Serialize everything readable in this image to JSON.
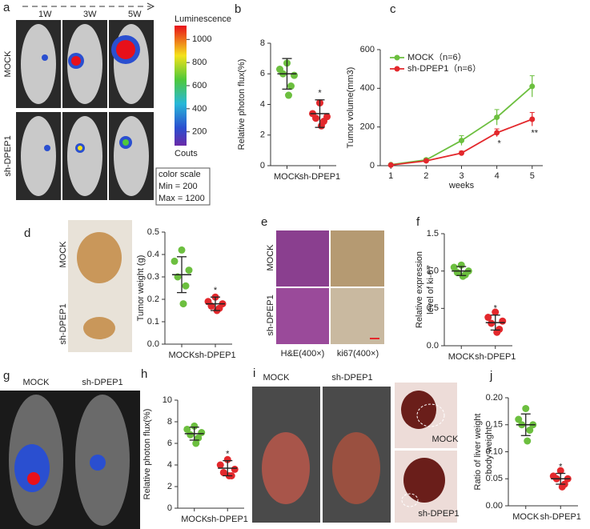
{
  "chart_data": [
    {
      "panel": "b",
      "type": "dot",
      "ylabel": [
        "Relative photon flux(%)"
      ],
      "ylim": [
        0,
        8
      ],
      "yticks": [
        0,
        2,
        4,
        6,
        8
      ],
      "groups": [
        {
          "label": "MOCK",
          "color": "#6cbf3f",
          "values": [
            6.7,
            6.3,
            5.9,
            6.0,
            5.2,
            4.6
          ],
          "mean": 6.0,
          "sd": 1.0
        },
        {
          "label": "sh-DPEP1",
          "color": "#e3282c",
          "values": [
            4.1,
            3.4,
            3.2,
            3.1,
            2.9,
            2.6
          ],
          "mean": 3.4,
          "sd": 0.9,
          "significance": "*"
        }
      ]
    },
    {
      "panel": "c",
      "type": "line",
      "xlabel": "weeks",
      "ylabel": "Tumor volume(mm3)",
      "x": [
        1,
        2,
        3,
        4,
        5
      ],
      "xlim": [
        0.7,
        5.3
      ],
      "xticks": [
        1,
        2,
        3,
        4,
        5
      ],
      "ylim": [
        0,
        600
      ],
      "yticks": [
        0,
        200,
        400,
        600
      ],
      "legend": "top-left",
      "series": [
        {
          "name": "MOCK（n=6）",
          "color": "#6cbf3f",
          "values": [
            5,
            30,
            130,
            250,
            410
          ],
          "errors": [
            3,
            8,
            25,
            40,
            55
          ],
          "significance": [
            null,
            null,
            null,
            null,
            null
          ]
        },
        {
          "name": "sh-DPEP1（n=6）",
          "color": "#e3282c",
          "values": [
            3,
            25,
            65,
            170,
            240
          ],
          "errors": [
            2,
            5,
            10,
            20,
            35
          ],
          "significance": [
            null,
            null,
            null,
            "*",
            "**"
          ]
        }
      ]
    },
    {
      "panel": "d",
      "type": "dot",
      "ylabel": [
        "Tumor weight (g)"
      ],
      "ylim": [
        0,
        0.5
      ],
      "yticks": [
        {
          "value": 0,
          "label": "0.0"
        },
        0.1,
        0.2,
        0.3,
        0.4,
        0.5
      ],
      "groups": [
        {
          "label": "MOCK",
          "color": "#6cbf3f",
          "values": [
            0.42,
            0.37,
            0.33,
            0.3,
            0.26,
            0.18
          ],
          "mean": 0.31,
          "sd": 0.08
        },
        {
          "label": "sh-DPEP1",
          "color": "#e3282c",
          "values": [
            0.21,
            0.19,
            0.18,
            0.17,
            0.16,
            0.15
          ],
          "mean": 0.18,
          "sd": 0.03,
          "significance": "*"
        }
      ]
    },
    {
      "panel": "f",
      "type": "dot",
      "ylabel": [
        "Relative expression",
        "level of ki-67"
      ],
      "ylim": [
        0,
        1.5
      ],
      "yticks": [
        {
          "value": 0,
          "label": "0.0"
        },
        0.5,
        {
          "value": 1,
          "label": "1.0"
        },
        1.5
      ],
      "groups": [
        {
          "label": "MOCK",
          "color": "#6cbf3f",
          "values": [
            1.08,
            1.05,
            1.0,
            0.98,
            0.95,
            0.93
          ],
          "mean": 1.0,
          "sd": 0.06
        },
        {
          "label": "sh-DPEP1",
          "color": "#e3282c",
          "values": [
            0.45,
            0.38,
            0.33,
            0.3,
            0.22,
            0.18
          ],
          "mean": 0.31,
          "sd": 0.1,
          "significance": "*"
        }
      ]
    },
    {
      "panel": "h",
      "type": "dot",
      "ylabel": [
        "Relative photon flux(%)"
      ],
      "ylim": [
        0,
        10
      ],
      "yticks": [
        0,
        2,
        4,
        6,
        8,
        10
      ],
      "groups": [
        {
          "label": "MOCK",
          "color": "#6cbf3f",
          "values": [
            7.6,
            7.3,
            7.0,
            6.8,
            6.5,
            6.0
          ],
          "mean": 6.9,
          "sd": 0.6
        },
        {
          "label": "sh-DPEP1",
          "color": "#e3282c",
          "values": [
            4.5,
            4.0,
            3.6,
            3.3,
            3.0,
            3.0
          ],
          "mean": 3.7,
          "sd": 0.7,
          "significance": "*"
        }
      ]
    },
    {
      "panel": "j",
      "type": "dot",
      "ylabel": [
        "Ratio of liver weight",
        ":body weight"
      ],
      "ylim": [
        0,
        0.2
      ],
      "yticks": [
        {
          "value": 0,
          "label": "0.00"
        },
        {
          "value": 0.05,
          "label": "0.05"
        },
        {
          "value": 0.1,
          "label": "0.10"
        },
        {
          "value": 0.15,
          "label": "0.15"
        },
        {
          "value": 0.2,
          "label": "0.20"
        }
      ],
      "groups": [
        {
          "label": "MOCK",
          "color": "#6cbf3f",
          "values": [
            0.18,
            0.16,
            0.15,
            0.15,
            0.14,
            0.12
          ],
          "mean": 0.15,
          "sd": 0.02
        },
        {
          "label": "sh-DPEP1",
          "color": "#e3282c",
          "values": [
            0.065,
            0.055,
            0.05,
            0.05,
            0.04,
            0.035
          ],
          "mean": 0.05,
          "sd": 0.01,
          "significance": "*"
        }
      ]
    }
  ],
  "panel_a": {
    "letter": "a",
    "timepoints": [
      "1W",
      "3W",
      "5W"
    ],
    "rows": [
      "MOCK",
      "sh-DPEP1"
    ],
    "colorbar": {
      "label": "Luminescence",
      "lim": [
        80,
        1120
      ],
      "ticks": [
        200,
        400,
        600,
        800,
        1000
      ],
      "bottom": "Couts"
    },
    "scale_box": [
      "color scale",
      "Min = 200",
      "Max = 1200"
    ]
  },
  "panel_d_image": {
    "rows": [
      "MOCK",
      "sh-DPEP1"
    ]
  },
  "panel_e": {
    "letter": "e",
    "rows": [
      "MOCK",
      "sh-DPEP1"
    ],
    "columns": [
      "H&E(400×)",
      "ki67(400×)"
    ]
  },
  "panel_g": {
    "letter": "g",
    "columns": [
      "MOCK",
      "sh-DPEP1"
    ]
  },
  "panel_i": {
    "letter": "i",
    "columns": [
      "MOCK",
      "sh-DPEP1"
    ],
    "insets": [
      "MOCK",
      "sh-DPEP1"
    ]
  }
}
